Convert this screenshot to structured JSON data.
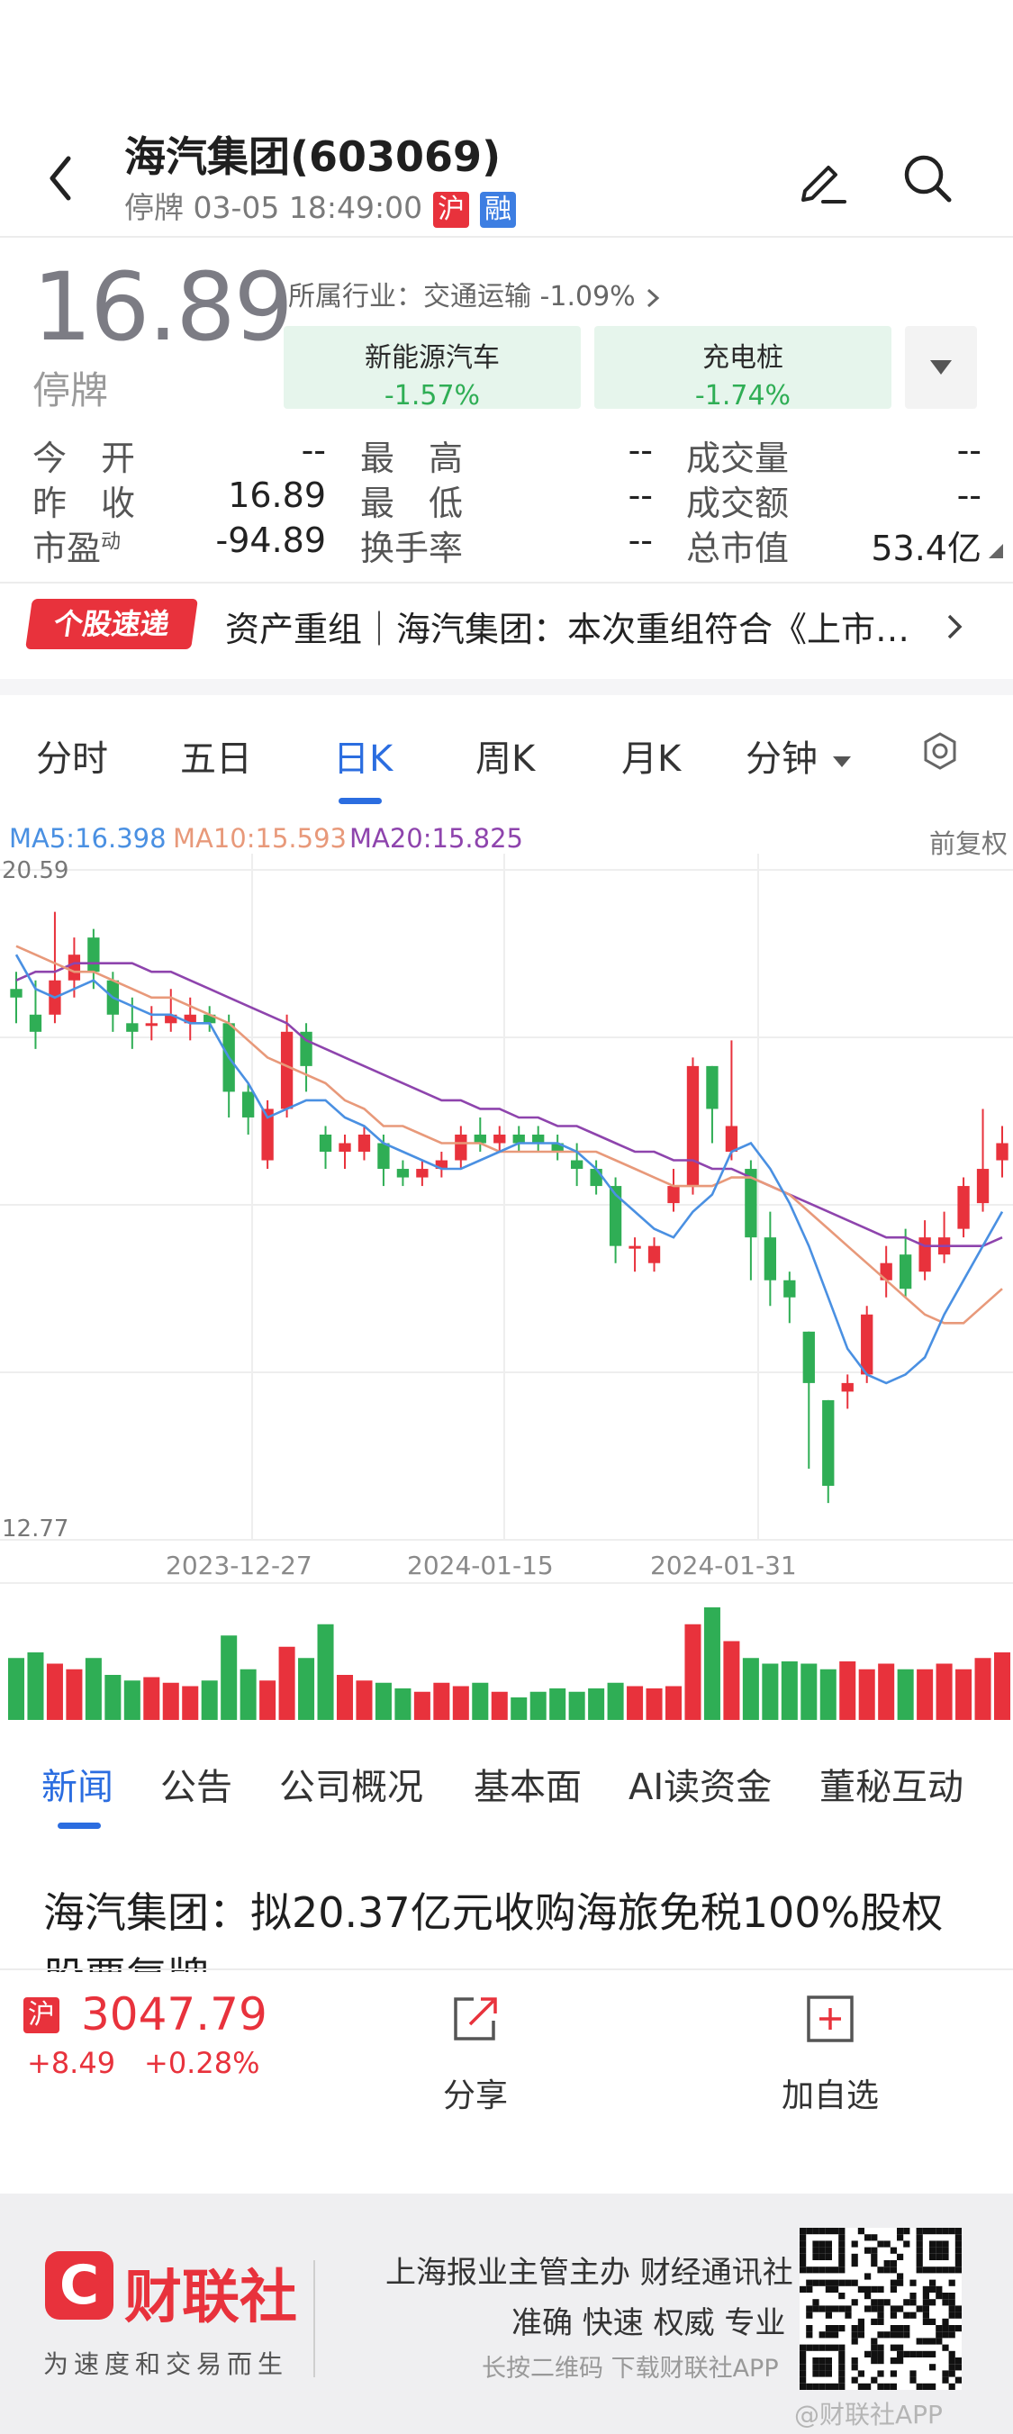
{
  "header": {
    "stock_name": "海汽集团(603069)",
    "status_line": "停牌 03-05 18:49:00",
    "tag_hu": "沪",
    "tag_rong": "融"
  },
  "quote": {
    "price": "16.89",
    "state": "停牌",
    "industry": "所属行业：交通运输 -1.09%",
    "chips": [
      {
        "name": "新能源汽车",
        "change": "-1.57%"
      },
      {
        "name": "充电桩",
        "change": "-1.74%"
      }
    ],
    "fields": [
      {
        "label": "今　开",
        "value": "--"
      },
      {
        "label": "最　高",
        "value": "--"
      },
      {
        "label": "成交量",
        "value": "--"
      },
      {
        "label": "昨　收",
        "value": "16.89"
      },
      {
        "label": "最　低",
        "value": "--"
      },
      {
        "label": "成交额",
        "value": "--"
      },
      {
        "label": "市盈",
        "label_sup": "动",
        "value": "-94.89"
      },
      {
        "label": "换手率",
        "value": "--"
      },
      {
        "label": "总市值",
        "value": "53.4亿"
      }
    ]
  },
  "ticker": {
    "badge": "个股速递",
    "text": "资产重组｜海汽集团：本次重组符合《上市…"
  },
  "kline_tabs": [
    "分时",
    "五日",
    "日K",
    "周K",
    "月K",
    "分钟"
  ],
  "kline_active": "日K",
  "ma_legend": {
    "ma5": "MA5:16.398",
    "ma10": "MA10:15.593",
    "ma20": "MA20:15.825",
    "adjust": "前复权"
  },
  "chart_data": {
    "type": "candlestick",
    "y_max_label": "20.59",
    "y_min_label": "12.77",
    "ylim": [
      12.77,
      20.59
    ],
    "x_tick_labels": [
      "2023-12-27",
      "2024-01-15",
      "2024-01-31"
    ],
    "colors": {
      "up": "#e8323c",
      "down": "#2fae55",
      "ma5": "#4a90e2",
      "ma10": "#e8997a",
      "ma20": "#8e44ad"
    },
    "candles": [
      {
        "o": 19.2,
        "c": 19.1,
        "h": 19.4,
        "l": 18.8
      },
      {
        "o": 18.9,
        "c": 18.7,
        "h": 19.3,
        "l": 18.5
      },
      {
        "o": 18.9,
        "c": 19.3,
        "h": 20.1,
        "l": 18.8
      },
      {
        "o": 19.3,
        "c": 19.6,
        "h": 19.8,
        "l": 19.1
      },
      {
        "o": 19.8,
        "c": 19.4,
        "h": 19.9,
        "l": 19.2
      },
      {
        "o": 19.3,
        "c": 18.9,
        "h": 19.4,
        "l": 18.7
      },
      {
        "o": 18.8,
        "c": 18.7,
        "h": 19.1,
        "l": 18.5
      },
      {
        "o": 18.8,
        "c": 18.8,
        "h": 19.0,
        "l": 18.6
      },
      {
        "o": 18.8,
        "c": 18.9,
        "h": 19.2,
        "l": 18.7
      },
      {
        "o": 18.8,
        "c": 18.9,
        "h": 19.1,
        "l": 18.6
      },
      {
        "o": 18.9,
        "c": 18.8,
        "h": 19.0,
        "l": 18.7
      },
      {
        "o": 18.8,
        "c": 18.0,
        "h": 18.9,
        "l": 17.7
      },
      {
        "o": 18.0,
        "c": 17.7,
        "h": 18.1,
        "l": 17.5
      },
      {
        "o": 17.2,
        "c": 17.8,
        "h": 17.9,
        "l": 17.1
      },
      {
        "o": 17.8,
        "c": 18.7,
        "h": 18.9,
        "l": 17.7
      },
      {
        "o": 18.7,
        "c": 18.3,
        "h": 18.8,
        "l": 18.0
      },
      {
        "o": 17.5,
        "c": 17.3,
        "h": 17.6,
        "l": 17.1
      },
      {
        "o": 17.3,
        "c": 17.4,
        "h": 17.5,
        "l": 17.1
      },
      {
        "o": 17.3,
        "c": 17.5,
        "h": 17.6,
        "l": 17.2
      },
      {
        "o": 17.4,
        "c": 17.1,
        "h": 17.5,
        "l": 16.9
      },
      {
        "o": 17.1,
        "c": 17.0,
        "h": 17.2,
        "l": 16.9
      },
      {
        "o": 17.0,
        "c": 17.1,
        "h": 17.2,
        "l": 16.9
      },
      {
        "o": 17.1,
        "c": 17.2,
        "h": 17.3,
        "l": 17.0
      },
      {
        "o": 17.2,
        "c": 17.5,
        "h": 17.6,
        "l": 17.1
      },
      {
        "o": 17.5,
        "c": 17.4,
        "h": 17.7,
        "l": 17.3
      },
      {
        "o": 17.4,
        "c": 17.5,
        "h": 17.6,
        "l": 17.3
      },
      {
        "o": 17.5,
        "c": 17.4,
        "h": 17.6,
        "l": 17.3
      },
      {
        "o": 17.5,
        "c": 17.4,
        "h": 17.6,
        "l": 17.3
      },
      {
        "o": 17.4,
        "c": 17.3,
        "h": 17.5,
        "l": 17.2
      },
      {
        "o": 17.2,
        "c": 17.1,
        "h": 17.4,
        "l": 16.9
      },
      {
        "o": 17.1,
        "c": 16.9,
        "h": 17.2,
        "l": 16.8
      },
      {
        "o": 16.9,
        "c": 16.2,
        "h": 17.0,
        "l": 16.0
      },
      {
        "o": 16.2,
        "c": 16.2,
        "h": 16.3,
        "l": 15.9
      },
      {
        "o": 16.0,
        "c": 16.2,
        "h": 16.3,
        "l": 15.9
      },
      {
        "o": 16.7,
        "c": 16.9,
        "h": 17.1,
        "l": 16.6
      },
      {
        "o": 16.9,
        "c": 18.3,
        "h": 18.4,
        "l": 16.8
      },
      {
        "o": 18.3,
        "c": 17.8,
        "h": 18.3,
        "l": 17.4
      },
      {
        "o": 17.3,
        "c": 17.6,
        "h": 18.6,
        "l": 17.2
      },
      {
        "o": 17.1,
        "c": 16.3,
        "h": 17.2,
        "l": 15.8
      },
      {
        "o": 16.3,
        "c": 15.8,
        "h": 16.6,
        "l": 15.5
      },
      {
        "o": 15.8,
        "c": 15.6,
        "h": 15.9,
        "l": 15.3
      },
      {
        "o": 15.2,
        "c": 14.6,
        "h": 15.2,
        "l": 13.6
      },
      {
        "o": 14.4,
        "c": 13.4,
        "h": 14.4,
        "l": 13.2
      },
      {
        "o": 14.5,
        "c": 14.6,
        "h": 14.7,
        "l": 14.3
      },
      {
        "o": 14.7,
        "c": 15.4,
        "h": 15.5,
        "l": 14.6
      },
      {
        "o": 15.8,
        "c": 16.0,
        "h": 16.2,
        "l": 15.6
      },
      {
        "o": 16.1,
        "c": 15.7,
        "h": 16.4,
        "l": 15.6
      },
      {
        "o": 15.9,
        "c": 16.3,
        "h": 16.5,
        "l": 15.8
      },
      {
        "o": 16.1,
        "c": 16.3,
        "h": 16.6,
        "l": 16.0
      },
      {
        "o": 16.4,
        "c": 16.9,
        "h": 17.0,
        "l": 16.3
      },
      {
        "o": 16.7,
        "c": 17.1,
        "h": 17.8,
        "l": 16.6
      },
      {
        "o": 17.2,
        "c": 17.4,
        "h": 17.6,
        "l": 17.0
      }
    ],
    "ma5": [
      19.6,
      19.2,
      19.1,
      19.2,
      19.3,
      19.1,
      19.0,
      18.9,
      18.9,
      18.8,
      18.8,
      18.4,
      18.1,
      17.7,
      17.8,
      17.9,
      17.9,
      17.7,
      17.6,
      17.4,
      17.3,
      17.2,
      17.1,
      17.1,
      17.2,
      17.3,
      17.4,
      17.4,
      17.4,
      17.3,
      17.1,
      16.8,
      16.6,
      16.4,
      16.3,
      16.6,
      16.8,
      17.3,
      17.4,
      17.1,
      16.7,
      16.2,
      15.6,
      15.0,
      14.7,
      14.6,
      14.7,
      14.9,
      15.4,
      15.8,
      16.2,
      16.6
    ],
    "ma10": [
      19.7,
      19.6,
      19.5,
      19.4,
      19.4,
      19.3,
      19.2,
      19.1,
      19.1,
      19.0,
      18.9,
      18.8,
      18.6,
      18.4,
      18.3,
      18.2,
      18.1,
      17.9,
      17.8,
      17.6,
      17.6,
      17.5,
      17.4,
      17.4,
      17.4,
      17.3,
      17.3,
      17.3,
      17.3,
      17.3,
      17.3,
      17.2,
      17.1,
      17.0,
      16.9,
      16.9,
      16.9,
      17.0,
      17.0,
      16.9,
      16.8,
      16.6,
      16.4,
      16.2,
      16.0,
      15.8,
      15.6,
      15.4,
      15.3,
      15.3,
      15.5,
      15.7
    ],
    "ma20": [
      19.3,
      19.4,
      19.4,
      19.5,
      19.5,
      19.5,
      19.5,
      19.4,
      19.4,
      19.3,
      19.2,
      19.1,
      19.0,
      18.9,
      18.8,
      18.6,
      18.5,
      18.4,
      18.3,
      18.2,
      18.1,
      18.0,
      17.9,
      17.9,
      17.8,
      17.8,
      17.7,
      17.7,
      17.6,
      17.6,
      17.5,
      17.4,
      17.3,
      17.3,
      17.2,
      17.2,
      17.1,
      17.1,
      17.0,
      16.9,
      16.8,
      16.7,
      16.6,
      16.5,
      16.4,
      16.3,
      16.3,
      16.2,
      16.2,
      16.2,
      16.2,
      16.3
    ],
    "volume_relative": [
      0.55,
      0.6,
      0.5,
      0.45,
      0.55,
      0.4,
      0.35,
      0.38,
      0.33,
      0.3,
      0.35,
      0.75,
      0.45,
      0.35,
      0.65,
      0.55,
      0.85,
      0.4,
      0.35,
      0.33,
      0.28,
      0.25,
      0.33,
      0.3,
      0.33,
      0.25,
      0.2,
      0.25,
      0.28,
      0.25,
      0.28,
      0.33,
      0.3,
      0.28,
      0.3,
      0.85,
      1.0,
      0.7,
      0.55,
      0.5,
      0.52,
      0.5,
      0.45,
      0.52,
      0.45,
      0.5,
      0.45,
      0.45,
      0.5,
      0.45,
      0.55,
      0.6
    ]
  },
  "news_tabs": [
    "新闻",
    "公告",
    "公司概况",
    "基本面",
    "AI读资金",
    "董秘互动"
  ],
  "news_active": "新闻",
  "headline": "海汽集团：拟20.37亿元收购海旅免税100%股权",
  "headline2": "股票复牌",
  "bottom": {
    "index_tag": "沪",
    "index_value": "3047.79",
    "index_change": "+8.49",
    "index_pct": "+0.28%",
    "share_label": "分享",
    "add_label": "加自选"
  },
  "footer": {
    "logo_letter": "C",
    "logo_name": "财联社",
    "slogan": "为速度和交易而生",
    "line1": "上海报业主管主办 财经通讯社",
    "line2": "准确 快速 权威 专业",
    "line3": "长按二维码 下载财联社APP",
    "watermark": "@财联社APP"
  }
}
